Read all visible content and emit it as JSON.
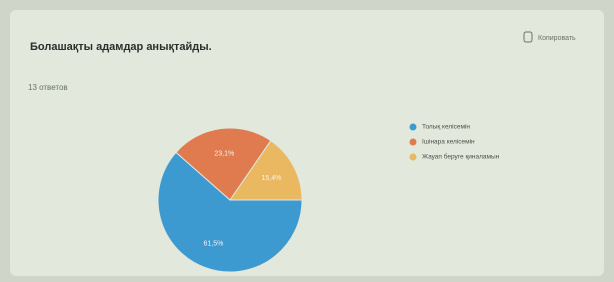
{
  "chart_data": {
    "type": "pie",
    "title": "Болашақты адамдар анықтайды.",
    "subtitle": "13 ответов",
    "copy_label": "Копировать",
    "categories": [
      "Толық келісемін",
      "Ішінара келісемін",
      "Жауап беруге қиналамын"
    ],
    "values": [
      61.5,
      23.1,
      15.4
    ],
    "value_labels": [
      "61,5%",
      "23,1%",
      "15,4%"
    ],
    "colors": [
      "#3d9ad1",
      "#e07b4f",
      "#e9b860"
    ],
    "legend": "right"
  }
}
